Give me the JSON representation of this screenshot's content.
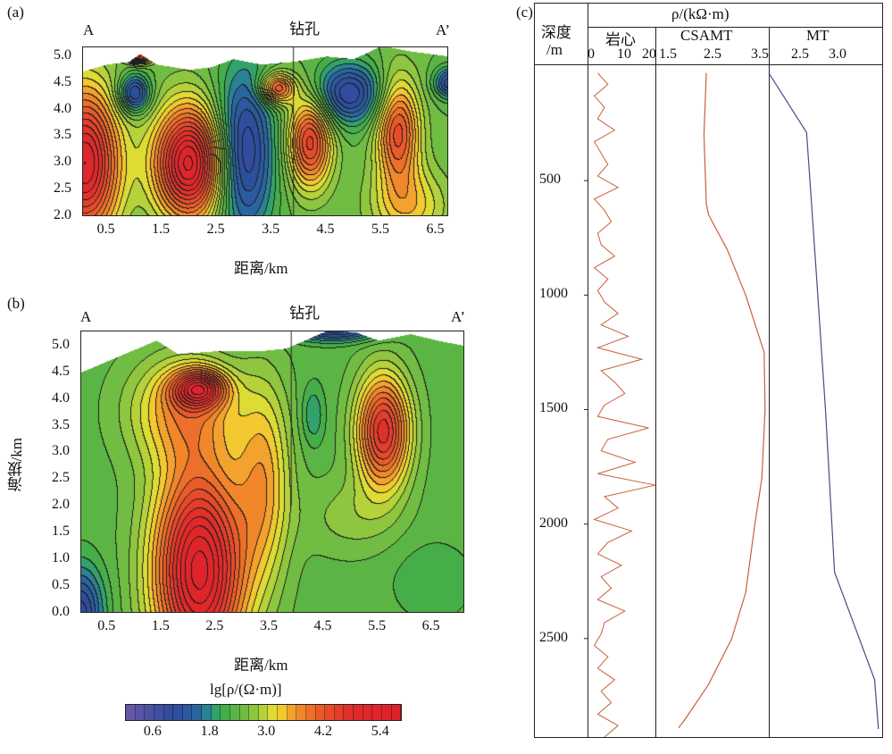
{
  "chart_data": [
    {
      "panel_label": "(a)",
      "type": "heatmap",
      "subtype": "contour",
      "left_label": "A",
      "right_label": "A’",
      "borehole_label": "钻孔",
      "borehole_x": 3.9,
      "xlabel": "距离/km",
      "ylabel": "",
      "xlim": [
        0.05,
        6.72
      ],
      "ylim": [
        2.0,
        5.18
      ],
      "xticks": [
        0.5,
        1.5,
        2.5,
        3.5,
        4.5,
        5.5,
        6.5
      ],
      "yticks": [
        2.0,
        2.5,
        3.0,
        3.5,
        4.0,
        4.5,
        5.0
      ],
      "background_value": 2.4,
      "topography": [
        [
          0,
          4.7
        ],
        [
          0.5,
          4.85
        ],
        [
          0.9,
          4.9
        ],
        [
          1.1,
          5.05
        ],
        [
          1.4,
          4.85
        ],
        [
          2.0,
          4.75
        ],
        [
          2.4,
          4.8
        ],
        [
          2.8,
          4.95
        ],
        [
          3.3,
          4.85
        ],
        [
          3.9,
          4.9
        ],
        [
          4.5,
          5.0
        ],
        [
          5.0,
          4.95
        ],
        [
          5.5,
          5.2
        ],
        [
          6.0,
          5.1
        ],
        [
          6.72,
          5.0
        ]
      ],
      "anomalies": [
        {
          "x": 0.1,
          "y": 3.0,
          "value": 5.2,
          "sx": 0.45,
          "sy": 1.0
        },
        {
          "x": 2.0,
          "y": 3.0,
          "value": 5.5,
          "sx": 0.45,
          "sy": 0.75
        },
        {
          "x": 3.0,
          "y": 3.2,
          "value": 0.7,
          "sx": 0.38,
          "sy": 1.1
        },
        {
          "x": 1.0,
          "y": 4.3,
          "value": 0.8,
          "sx": 0.2,
          "sy": 0.25
        },
        {
          "x": 3.6,
          "y": 4.4,
          "value": 4.3,
          "sx": 0.22,
          "sy": 0.2
        },
        {
          "x": 4.2,
          "y": 3.4,
          "value": 4.5,
          "sx": 0.28,
          "sy": 0.6
        },
        {
          "x": 4.9,
          "y": 4.3,
          "value": 0.8,
          "sx": 0.45,
          "sy": 0.4
        },
        {
          "x": 5.8,
          "y": 3.6,
          "value": 4.3,
          "sx": 0.28,
          "sy": 0.7
        },
        {
          "x": 6.0,
          "y": 2.2,
          "value": 3.3,
          "sx": 0.5,
          "sy": 0.5
        },
        {
          "x": 6.75,
          "y": 4.5,
          "value": 1.0,
          "sx": 0.2,
          "sy": 0.2
        },
        {
          "x": 1.1,
          "y": 5.0,
          "value": 4.6,
          "sx": 0.15,
          "sy": 0.1
        }
      ]
    },
    {
      "panel_label": "(b)",
      "type": "heatmap",
      "subtype": "contour",
      "left_label": "A",
      "right_label": "A’",
      "borehole_label": "钻孔",
      "borehole_x": 3.9,
      "borehole_bottom": 2.0,
      "xlabel": "距离/km",
      "ylabel": "海拔/km",
      "xlim": [
        0,
        7.1
      ],
      "ylim": [
        0,
        5.28
      ],
      "xticks": [
        0.5,
        1.5,
        2.5,
        3.5,
        4.5,
        5.5,
        6.5
      ],
      "yticks": [
        0.0,
        0.5,
        1.0,
        1.5,
        2.0,
        2.5,
        3.0,
        3.5,
        4.0,
        4.5,
        5.0
      ],
      "background_value": 2.3,
      "topography": [
        [
          0,
          4.5
        ],
        [
          0.7,
          4.8
        ],
        [
          1.4,
          5.1
        ],
        [
          1.8,
          4.85
        ],
        [
          2.5,
          4.9
        ],
        [
          3.3,
          4.9
        ],
        [
          3.8,
          4.95
        ],
        [
          4.6,
          5.3
        ],
        [
          5.1,
          5.25
        ],
        [
          5.5,
          5.1
        ],
        [
          6.1,
          5.22
        ],
        [
          6.6,
          5.1
        ],
        [
          7.1,
          5.0
        ]
      ],
      "anomalies": [
        {
          "x": 2.2,
          "y": 0.8,
          "value": 5.5,
          "sx": 0.6,
          "sy": 1.4
        },
        {
          "x": 2.2,
          "y": 4.2,
          "value": 4.4,
          "sx": 0.35,
          "sy": 0.25
        },
        {
          "x": 1.9,
          "y": 3.8,
          "value": 3.5,
          "sx": 0.7,
          "sy": 0.7
        },
        {
          "x": 3.4,
          "y": 2.5,
          "value": 3.4,
          "sx": 0.35,
          "sy": 1.3
        },
        {
          "x": 5.6,
          "y": 3.4,
          "value": 4.7,
          "sx": 0.35,
          "sy": 0.75
        },
        {
          "x": 0.0,
          "y": 0.0,
          "value": 0.9,
          "sx": 0.3,
          "sy": 0.6
        },
        {
          "x": 4.7,
          "y": 5.3,
          "value": 0.9,
          "sx": 0.6,
          "sy": 0.15
        },
        {
          "x": 4.3,
          "y": 3.7,
          "value": 1.8,
          "sx": 0.15,
          "sy": 0.4
        },
        {
          "x": 6.5,
          "y": 0.6,
          "value": 2.0,
          "sx": 0.5,
          "sy": 0.5
        },
        {
          "x": 5.0,
          "y": 1.8,
          "value": 2.7,
          "sx": 0.6,
          "sy": 0.5
        }
      ]
    },
    {
      "type": "colorbar",
      "title": "lg[ρ/(Ω·m)]",
      "range": [
        0.0,
        5.8
      ],
      "step": 0.2,
      "ticks": [
        0.6,
        1.8,
        3.0,
        4.2,
        5.4
      ],
      "colors": [
        [
          0,
          "#6a5aa8"
        ],
        [
          1.0,
          "#2c4a9e"
        ],
        [
          1.6,
          "#2a6aa0"
        ],
        [
          1.8,
          "#2a9a8a"
        ],
        [
          2.0,
          "#3aaa4a"
        ],
        [
          2.6,
          "#7cc040"
        ],
        [
          3.0,
          "#c8d83a"
        ],
        [
          3.2,
          "#f0e030"
        ],
        [
          3.4,
          "#f5b030"
        ],
        [
          3.8,
          "#ef7a28"
        ],
        [
          4.2,
          "#e8502a"
        ],
        [
          4.8,
          "#e02a2a"
        ],
        [
          5.8,
          "#e0202a"
        ]
      ]
    },
    {
      "panel_label": "(c)",
      "type": "line",
      "subtype": "well-log",
      "header": "ρ/(kΩ·m)",
      "depth_label": "深度",
      "depth_unit": "/m",
      "depth_range": [
        0,
        2930
      ],
      "depth_ticks": [
        500,
        1000,
        1500,
        2000,
        2500
      ],
      "tracks": [
        {
          "name": "岩心",
          "ticks": [
            "0",
            "10",
            "20"
          ],
          "range": [
            0,
            20
          ],
          "color": "#c8603a",
          "depth_step": 50,
          "values": [
            3,
            6,
            2,
            5,
            3,
            8,
            2,
            4,
            6,
            3,
            9,
            2,
            5,
            7,
            3,
            4,
            8,
            2,
            6,
            3,
            5,
            9,
            4,
            12,
            3,
            16,
            4,
            8,
            11,
            5,
            3,
            18,
            6,
            4,
            14,
            3,
            20,
            5,
            9,
            2,
            13,
            6,
            3,
            10,
            4,
            7,
            3,
            11,
            5,
            4,
            2,
            6,
            3,
            8,
            4,
            7,
            3,
            9,
            5
          ],
          "width_note": ""
        },
        {
          "name": "CSAMT",
          "ticks": [
            "1.5",
            "2.5",
            "3.5"
          ],
          "range": [
            1.25,
            3.7
          ],
          "color": "#c8603a",
          "points": [
            [
              30,
              2.35
            ],
            [
              300,
              2.3
            ],
            [
              600,
              2.35
            ],
            [
              650,
              2.4
            ],
            [
              800,
              2.8
            ],
            [
              1000,
              3.2
            ],
            [
              1250,
              3.6
            ],
            [
              1500,
              3.62
            ],
            [
              1800,
              3.55
            ],
            [
              2000,
              3.4
            ],
            [
              2300,
              3.2
            ],
            [
              2500,
              2.9
            ],
            [
              2700,
              2.4
            ],
            [
              2850,
              1.9
            ],
            [
              2890,
              1.75
            ]
          ]
        },
        {
          "name": "MT",
          "ticks": [
            "2.5",
            "3.0"
          ],
          "range": [
            2.1,
            3.6
          ],
          "color": "#4a4a8a",
          "points": [
            [
              30,
              2.1
            ],
            [
              290,
              2.6
            ],
            [
              765,
              2.7
            ],
            [
              1500,
              2.85
            ],
            [
              2210,
              2.97
            ],
            [
              2680,
              3.5
            ],
            [
              2895,
              3.55
            ]
          ]
        }
      ]
    }
  ]
}
